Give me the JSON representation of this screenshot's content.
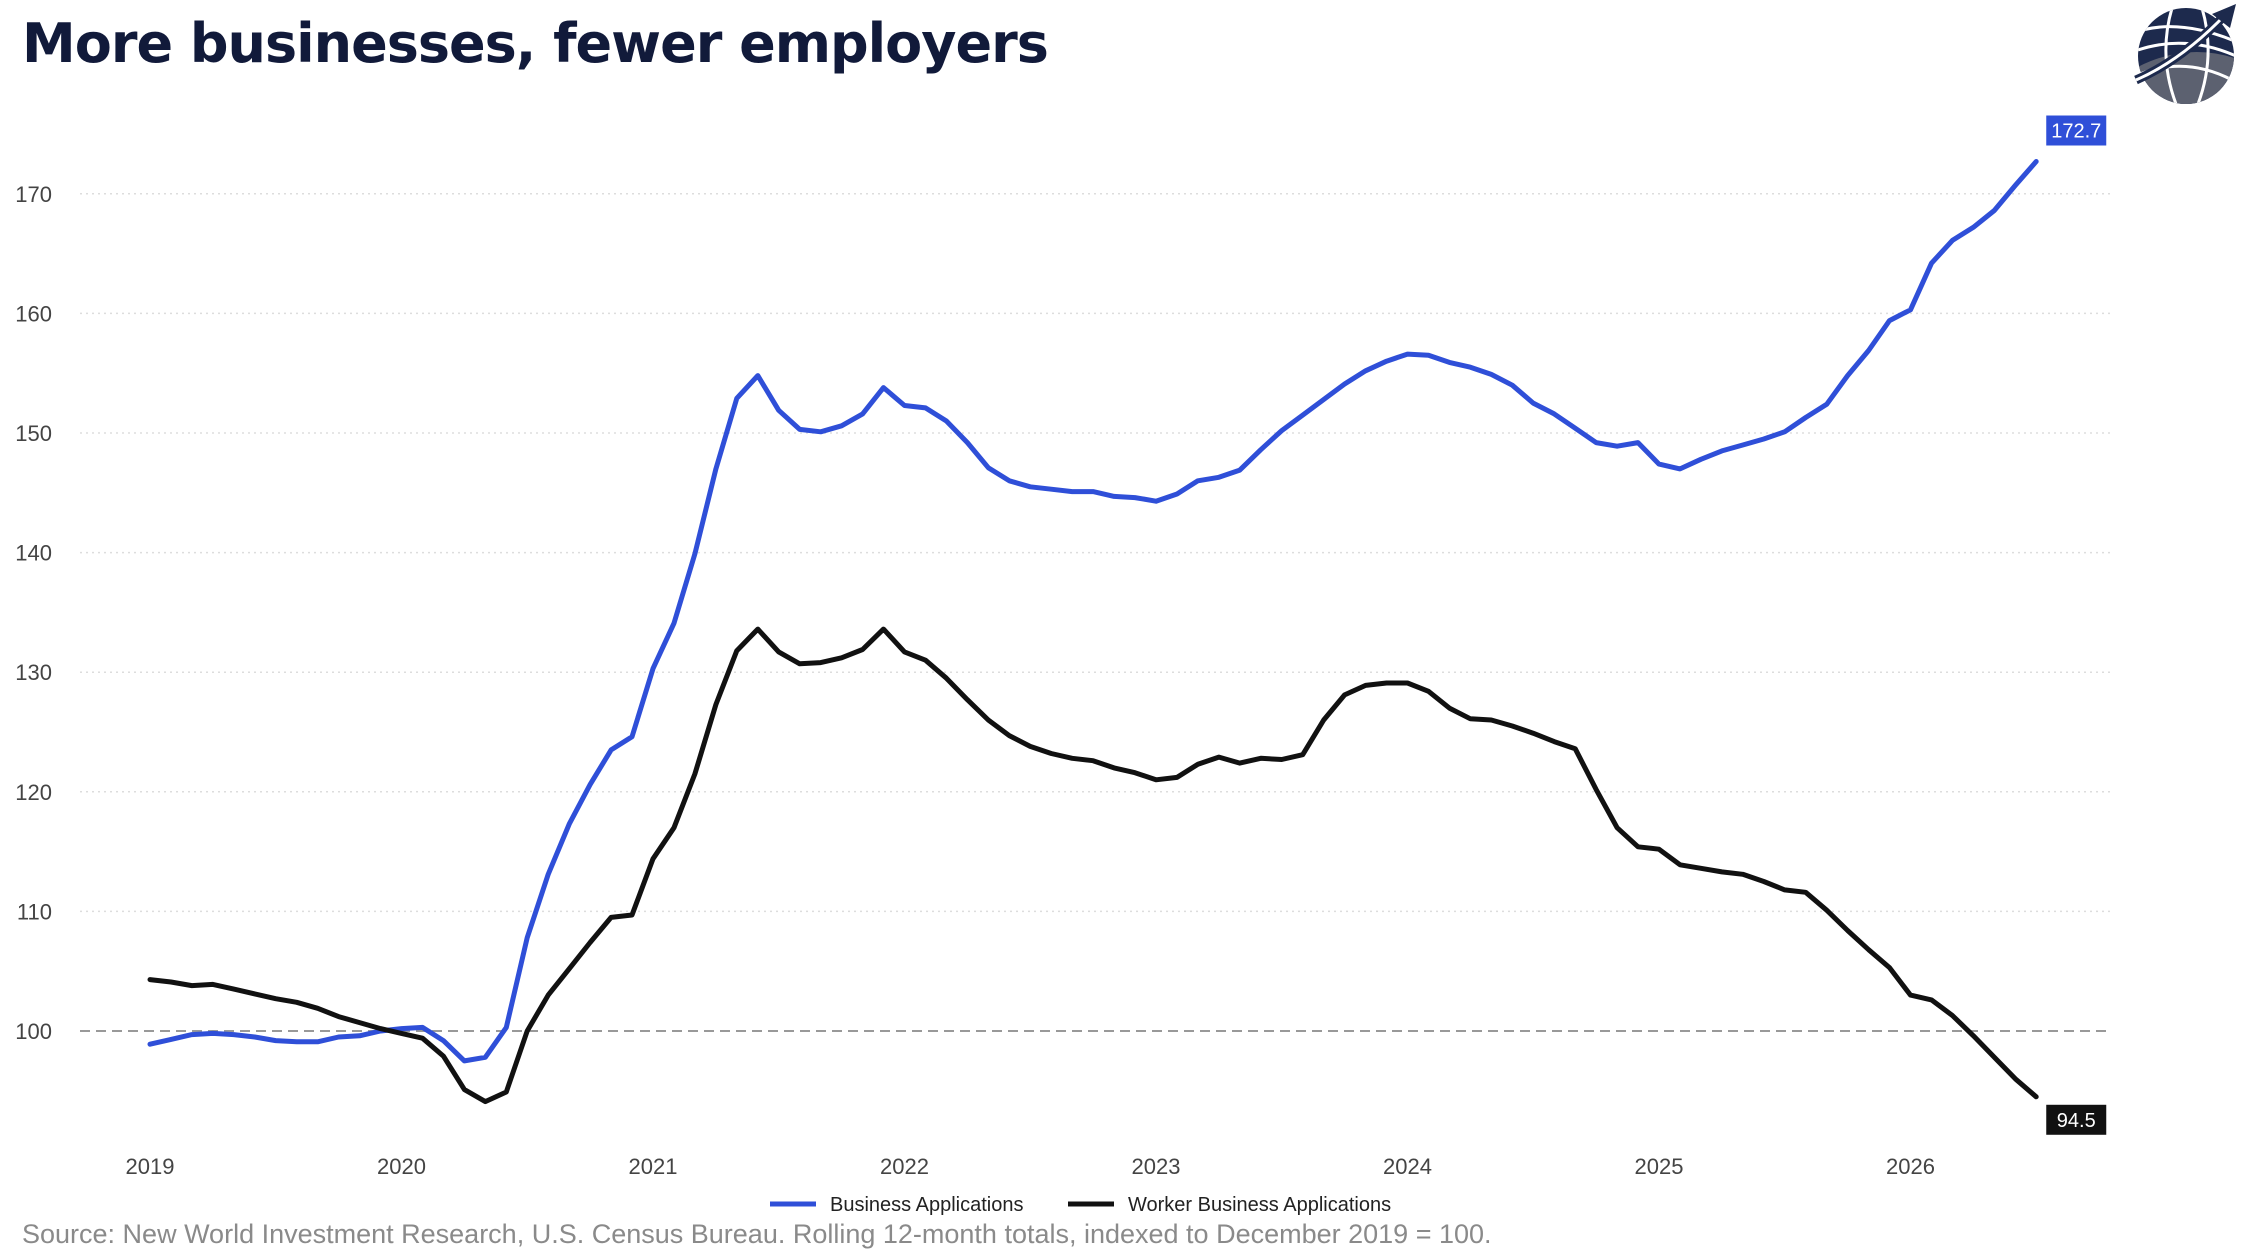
{
  "title": "More businesses, fewer employers",
  "source": "Source: New World Investment Research, U.S. Census Bureau. Rolling 12-month totals, indexed to December 2019 = 100.",
  "logo": {
    "icon": "globe-arrow-logo-icon",
    "colors": [
      "#1d2a4d",
      "#6b7080"
    ]
  },
  "colors": {
    "business": "#2f4fd8",
    "worker": "#111111",
    "grid": "#dddddd",
    "reference": "#999999"
  },
  "chart_data": {
    "type": "line",
    "xlim": [
      2019,
      2026.75
    ],
    "ylim": [
      90,
      176
    ],
    "x_ticks": [
      "2019",
      "2020",
      "2021",
      "2022",
      "2023",
      "2024",
      "2025",
      "2026"
    ],
    "y_ticks": [
      "100",
      "110",
      "120",
      "130",
      "140",
      "150",
      "160",
      "170"
    ],
    "reference_line": 100,
    "grid": "horizontal-dotted",
    "legend_position": "bottom-center",
    "x_start": 2019.0,
    "x_step": 0.0833333,
    "series": [
      {
        "name": "Business Applications",
        "color": "#2f4fd8",
        "end_label": "172.7",
        "values": [
          98.9,
          99.3,
          99.7,
          99.8,
          99.7,
          99.5,
          99.2,
          99.1,
          99.1,
          99.5,
          99.6,
          100.0,
          100.2,
          100.3,
          99.2,
          97.5,
          97.8,
          100.3,
          107.8,
          113.1,
          117.3,
          120.6,
          123.5,
          124.6,
          130.3,
          134.1,
          139.9,
          147.0,
          152.9,
          154.8,
          151.9,
          150.3,
          150.1,
          150.6,
          151.6,
          153.8,
          152.3,
          152.1,
          151.0,
          149.2,
          147.1,
          146.0,
          145.5,
          145.3,
          145.1,
          145.1,
          144.7,
          144.6,
          144.3,
          144.9,
          146.0,
          146.3,
          146.9,
          148.6,
          150.2,
          151.5,
          152.8,
          154.1,
          155.2,
          156.0,
          156.6,
          156.5,
          155.9,
          155.5,
          154.9,
          154.0,
          152.5,
          151.6,
          150.4,
          149.2,
          148.9,
          149.2,
          147.4,
          147.0,
          147.8,
          148.5,
          149.0,
          149.5,
          150.1,
          151.3,
          152.4,
          154.8,
          156.9,
          159.4,
          160.3,
          164.2,
          166.1,
          167.2,
          168.6,
          170.7,
          172.7
        ]
      },
      {
        "name": "Worker Business Applications",
        "color": "#111111",
        "end_label": "94.5",
        "values": [
          104.3,
          104.1,
          103.8,
          103.9,
          103.5,
          103.1,
          102.7,
          102.4,
          101.9,
          101.2,
          100.7,
          100.2,
          99.8,
          99.4,
          97.9,
          95.1,
          94.1,
          94.9,
          100.0,
          103.0,
          105.2,
          107.4,
          109.5,
          109.7,
          114.4,
          117.0,
          121.5,
          127.3,
          131.8,
          133.6,
          131.7,
          130.7,
          130.8,
          131.2,
          131.9,
          133.6,
          131.7,
          131.0,
          129.5,
          127.7,
          126.0,
          124.7,
          123.8,
          123.2,
          122.8,
          122.6,
          122.0,
          121.6,
          121.0,
          121.2,
          122.3,
          122.9,
          122.4,
          122.8,
          122.7,
          123.1,
          126.0,
          128.1,
          128.9,
          129.1,
          129.1,
          128.4,
          127.0,
          126.1,
          126.0,
          125.5,
          124.9,
          124.2,
          123.6,
          120.2,
          117.0,
          115.4,
          115.2,
          113.9,
          113.6,
          113.3,
          113.1,
          112.5,
          111.8,
          111.6,
          110.1,
          108.4,
          106.8,
          105.3,
          103.0,
          102.6,
          101.3,
          99.6,
          97.8,
          96.0,
          94.5
        ]
      }
    ]
  }
}
